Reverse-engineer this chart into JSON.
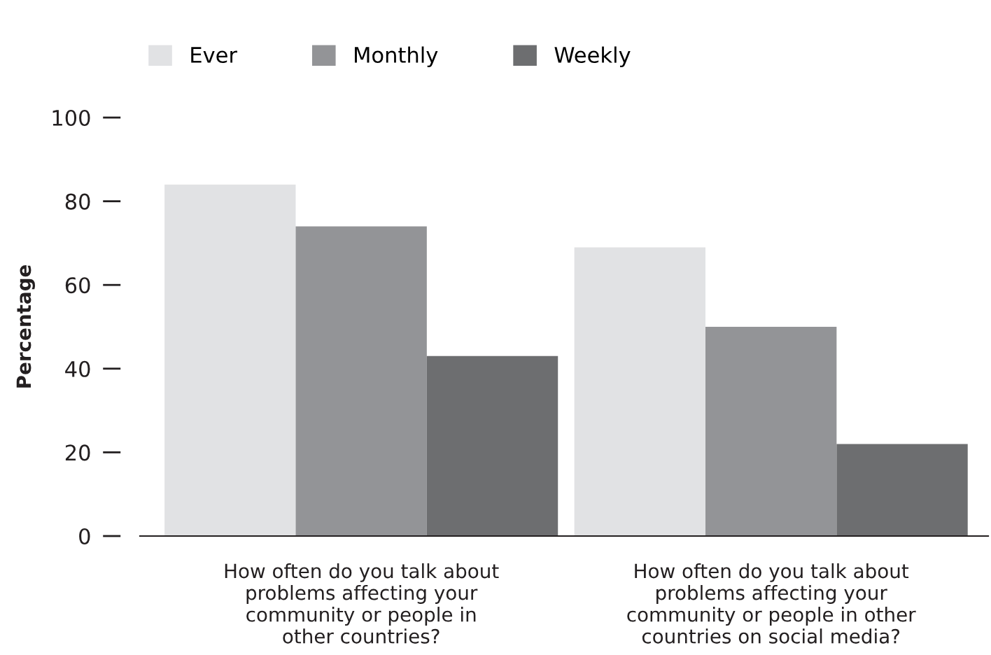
{
  "chart_data": {
    "type": "bar",
    "ylabel": "Percentage",
    "categories": [
      "How often do you talk about\nproblems affecting your\ncommunity or people in\nother countries?",
      "How often do you talk about\nproblems affecting your\ncommunity or people in other\ncountries on social media?"
    ],
    "series": [
      {
        "name": "Ever",
        "color": "#e1e2e4",
        "values": [
          84,
          69
        ]
      },
      {
        "name": "Monthly",
        "color": "#939497",
        "values": [
          74,
          50
        ]
      },
      {
        "name": "Weekly",
        "color": "#6d6e70",
        "values": [
          43,
          22
        ]
      }
    ],
    "ylim": [
      0,
      100
    ],
    "yticks": [
      0,
      20,
      40,
      60,
      80,
      100
    ],
    "grid": false,
    "legend": "top"
  }
}
